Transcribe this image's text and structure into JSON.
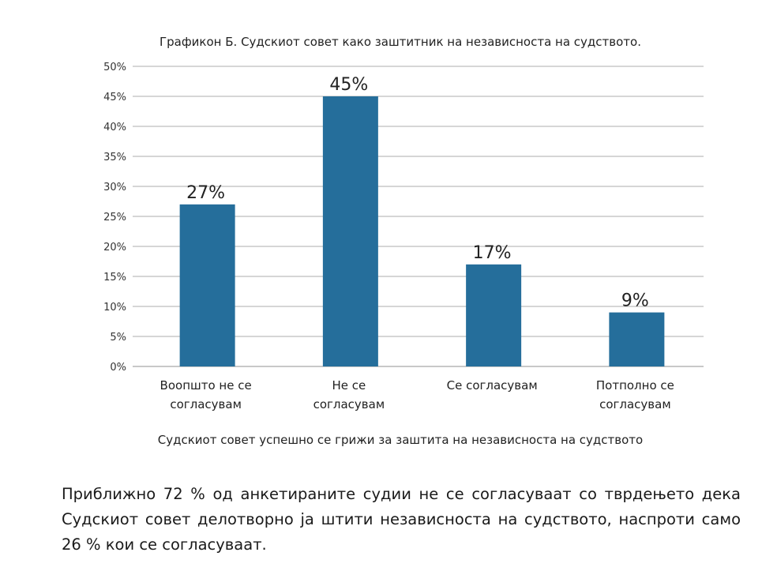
{
  "chart_data": {
    "type": "bar",
    "title": "Графикон Б. Судскиот совет како заштитник на независноста на судството.",
    "xlabel": "Судскиот совет успешно се грижи за заштита на независноста на судството",
    "ylabel": "",
    "categories": [
      [
        "Воопшто не се",
        "согласувам"
      ],
      [
        "Не се",
        "согласувам"
      ],
      [
        "Се согласувам"
      ],
      [
        "Потполно се",
        "согласувам"
      ]
    ],
    "values": [
      27,
      45,
      17,
      9
    ],
    "data_labels": [
      "27%",
      "45%",
      "17%",
      "9%"
    ],
    "ylim": [
      0,
      50
    ],
    "y_ticks": [
      0,
      5,
      10,
      15,
      20,
      25,
      30,
      35,
      40,
      45,
      50
    ],
    "y_tick_labels": [
      "0%",
      "5%",
      "10%",
      "15%",
      "20%",
      "25%",
      "30%",
      "35%",
      "40%",
      "45%",
      "50%"
    ],
    "grid": true,
    "legend": "none",
    "bar_color": "#256e9b",
    "grid_color": "#c8c8c8"
  },
  "paragraph": "Приближно 72 % од анкетираните судии не се согласуваат со тврдењето дека Судскиот совет делотворно ја штити независноста на судството, наспроти само 26 % кои се согласуваат."
}
